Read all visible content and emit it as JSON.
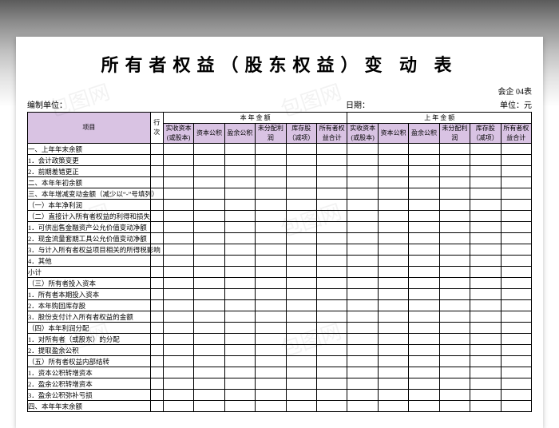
{
  "title": "所有者权益（股东权益）变 动 表",
  "meta": {
    "org_label": "编制单位：",
    "date_label": "日期：",
    "form_code": "会企 04表",
    "unit_label": "单位：元"
  },
  "header": {
    "item_label": "项目",
    "line_label": "行次",
    "this_year": "本 年 金 额",
    "last_year": "上 年 金 额",
    "cols": [
      "实收资本(或股本)",
      "资本公积",
      "盈余公积",
      "未分配利润",
      "库存股（减项）",
      "所有者权益合计",
      "实收资本(或股本)",
      "资本公积",
      "盈余公积",
      "未分配利润",
      "库存股（减项）",
      "所有者权益合计"
    ]
  },
  "rows": [
    "一、上年年末余额",
    "1．会计政策变更",
    "2．前期差错更正",
    "二、本年年初余额",
    "三、本年增减变动金额（减少以“-”号填列）",
    "（一）本年净利润",
    "（二）直接计入所有者权益的利得和损失",
    "1．可供出售金融资产公允价值变动净额",
    "2．现金流量套期工具公允价值变动净额",
    "3．与计入所有者权益项目相关的所得税影响",
    "4．其他",
    "小计",
    "（三）所有者投入资本",
    "1．所有者本期投入资本",
    "2．本年购回库存股",
    "3．股份支付计入所有者权益的金额",
    "（四）本年利润分配",
    "1．对所有者（或股东）的分配",
    "2．提取盈余公积",
    "（五）所有者权益内部结转",
    "1．资本公积转增资本",
    "2．盈余公积转增资本",
    "3．盈余公积弥补亏损",
    "四、本年年末余额"
  ],
  "colors": {
    "header_purple": "#d9c3e3",
    "border": "#000000",
    "background": "#ffffff"
  },
  "watermark": "包图网"
}
